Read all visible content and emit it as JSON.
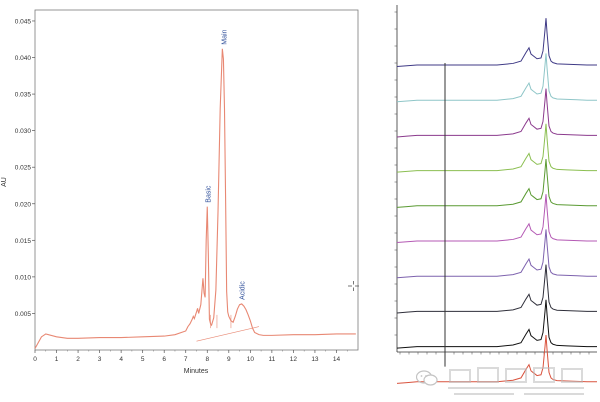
{
  "chart_data": [
    {
      "type": "line",
      "title": "",
      "xlabel": "Minutes",
      "ylabel": "AU",
      "xlim": [
        0,
        15
      ],
      "ylim": [
        0,
        0.0465
      ],
      "x_ticks": [
        "0",
        "1",
        "2",
        "3",
        "4",
        "5",
        "6",
        "7",
        "8",
        "9",
        "10",
        "11",
        "12",
        "13",
        "14"
      ],
      "y_ticks": [
        "0.005",
        "0.010",
        "0.015",
        "0.020",
        "0.025",
        "0.030",
        "0.035",
        "0.040",
        "0.045"
      ],
      "grid": false,
      "line_color": "#e88873",
      "annotation_color": "#2f4f9a",
      "series": [
        {
          "x": [
            0,
            0.3,
            0.5,
            1.0,
            1.5,
            2.0,
            3.0,
            4.0,
            5.0,
            6.0,
            6.5,
            7.0,
            7.1,
            7.2,
            7.3,
            7.35,
            7.4,
            7.5,
            7.55,
            7.6,
            7.7,
            7.75,
            7.8,
            7.85,
            7.9,
            7.95,
            8.0,
            8.05,
            8.1,
            8.15,
            8.2,
            8.3,
            8.4,
            8.5,
            8.6,
            8.7,
            8.75,
            8.8,
            8.85,
            8.9,
            8.95,
            9.0,
            9.1,
            9.2,
            9.3,
            9.4,
            9.5,
            9.6,
            9.7,
            9.8,
            9.9,
            10.0,
            10.1,
            10.2,
            10.4,
            10.6,
            11.0,
            12.0,
            13.0,
            14.0,
            14.9
          ],
          "y": [
            0.0002,
            0.0018,
            0.0022,
            0.0018,
            0.0016,
            0.0016,
            0.0017,
            0.0017,
            0.0018,
            0.0019,
            0.0021,
            0.0026,
            0.0032,
            0.0036,
            0.0042,
            0.0046,
            0.0043,
            0.0052,
            0.0057,
            0.005,
            0.0062,
            0.008,
            0.0098,
            0.0078,
            0.0072,
            0.015,
            0.0196,
            0.013,
            0.0042,
            0.0036,
            0.0034,
            0.0044,
            0.0082,
            0.019,
            0.033,
            0.0412,
            0.0398,
            0.033,
            0.021,
            0.008,
            0.0052,
            0.0046,
            0.004,
            0.0038,
            0.0046,
            0.0056,
            0.0062,
            0.0063,
            0.006,
            0.0055,
            0.0048,
            0.004,
            0.003,
            0.0024,
            0.0021,
            0.002,
            0.002,
            0.0021,
            0.0021,
            0.0022,
            0.0022
          ]
        }
      ],
      "annotations": [
        {
          "text": "Basic",
          "x": 8.0,
          "y": 0.0196
        },
        {
          "text": "Main",
          "x": 8.75,
          "y": 0.0412
        },
        {
          "text": "Acidic",
          "x": 9.6,
          "y": 0.0063
        }
      ]
    },
    {
      "type": "line",
      "title": "",
      "xlabel": "",
      "ylabel": "",
      "grid": false,
      "x_range": [
        0,
        1
      ],
      "vertical_marker_x": 0.24,
      "peak_shape": {
        "x": [
          0.0,
          0.05,
          0.1,
          0.2,
          0.3,
          0.4,
          0.5,
          0.58,
          0.62,
          0.645,
          0.66,
          0.67,
          0.68,
          0.7,
          0.72,
          0.73,
          0.74,
          0.745,
          0.75,
          0.76,
          0.77,
          0.78,
          0.8,
          0.85,
          0.9,
          0.95,
          1.0
        ],
        "y": [
          -0.02,
          -0.01,
          0.0,
          0.0,
          0.0,
          0.0,
          0.0,
          0.02,
          0.05,
          0.16,
          0.22,
          0.14,
          0.12,
          0.08,
          0.09,
          0.18,
          0.45,
          0.6,
          0.42,
          0.12,
          0.05,
          0.03,
          0.015,
          0.01,
          0.005,
          0.0,
          0.0
        ]
      },
      "series": [
        {
          "color": "#3f3a86",
          "amplitude": 1.0
        },
        {
          "color": "#8fc6c8",
          "amplitude": 1.0
        },
        {
          "color": "#8b3a8d",
          "amplitude": 1.0
        },
        {
          "color": "#8cbf52",
          "amplitude": 1.0
        },
        {
          "color": "#5a9a32",
          "amplitude": 1.0
        },
        {
          "color": "#b45ab4",
          "amplitude": 1.0
        },
        {
          "color": "#7d62ae",
          "amplitude": 1.0
        },
        {
          "color": "#2f2f3a",
          "amplitude": 1.0
        },
        {
          "color": "#111111",
          "amplitude": 1.0
        },
        {
          "color": "#d9533e",
          "amplitude": 1.0
        }
      ]
    }
  ]
}
